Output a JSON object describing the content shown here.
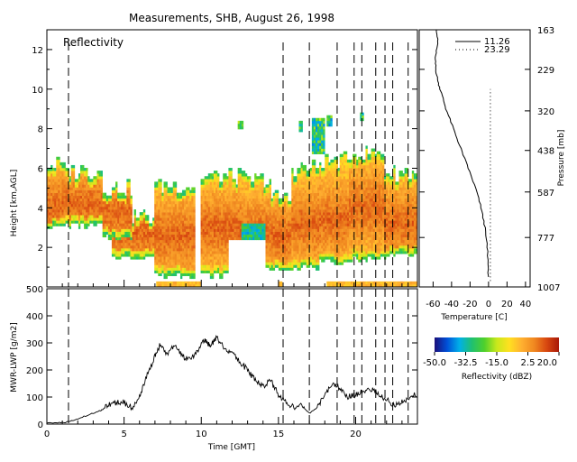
{
  "title": "Measurements, SHB, August 26, 1998",
  "colors": {
    "background": "#ffffff",
    "axis": "#000000",
    "marker": "#000000"
  },
  "chart_data": [
    {
      "id": "reflectivity",
      "type": "heatmap",
      "panel_label": "Reflectivity",
      "xlabel": "",
      "ylabel": "Height [km,AGL]",
      "xlim": [
        0,
        24
      ],
      "ylim": [
        0,
        13
      ],
      "yticks": [
        2,
        4,
        6,
        8,
        10,
        12
      ],
      "markers_x": [
        1.4,
        15.3,
        17.0,
        18.8,
        19.9,
        20.4,
        21.3,
        21.9,
        22.4,
        23.4
      ],
      "cloud_regions": [
        {
          "t0": 0.0,
          "t1": 1.0,
          "base": 3.0,
          "top": 6.2,
          "core": 4.0
        },
        {
          "t0": 0.7,
          "t1": 3.6,
          "base": 3.1,
          "top": 5.9,
          "core": 4.2
        },
        {
          "t0": 3.6,
          "t1": 5.5,
          "base": 2.5,
          "top": 5.0,
          "core": 3.8
        },
        {
          "t0": 4.2,
          "t1": 7.0,
          "base": 1.5,
          "top": 3.6,
          "core": 2.8
        },
        {
          "t0": 7.0,
          "t1": 9.6,
          "base": 0.6,
          "top": 5.1,
          "core": 2.6
        },
        {
          "t0": 10.0,
          "t1": 12.6,
          "base": 0.6,
          "top": 5.6,
          "core": 3.0
        },
        {
          "t0": 12.6,
          "t1": 14.5,
          "base": 0.8,
          "top": 5.4,
          "core": 2.8
        },
        {
          "t0": 14.5,
          "t1": 15.8,
          "base": 0.9,
          "top": 4.5,
          "core": 2.6
        },
        {
          "t0": 15.8,
          "t1": 17.6,
          "base": 1.0,
          "top": 6.0,
          "core": 3.2
        },
        {
          "t0": 17.6,
          "t1": 19.6,
          "base": 1.2,
          "top": 6.4,
          "core": 3.4
        },
        {
          "t0": 19.6,
          "t1": 21.8,
          "base": 1.4,
          "top": 6.8,
          "core": 4.0
        },
        {
          "t0": 21.8,
          "t1": 24.0,
          "base": 1.6,
          "top": 5.8,
          "core": 3.2
        }
      ],
      "dry_pockets": [
        {
          "t0": 11.8,
          "t1": 14.2,
          "z0": 0.0,
          "z1": 2.4
        },
        {
          "t0": 15.2,
          "t1": 16.2,
          "z0": 0.0,
          "z1": 0.9
        }
      ],
      "aloft_echoes": [
        {
          "t": 12.5,
          "z": 8.2,
          "w": 0.4,
          "h": 0.5
        },
        {
          "t": 16.4,
          "z": 8.1,
          "w": 0.2,
          "h": 0.5
        },
        {
          "t": 17.6,
          "z": 7.6,
          "w": 0.9,
          "h": 1.8
        },
        {
          "t": 18.3,
          "z": 8.4,
          "w": 0.3,
          "h": 0.5
        },
        {
          "t": 20.4,
          "z": 8.6,
          "w": 0.3,
          "h": 0.5
        }
      ],
      "surface_echoes": [
        {
          "t0": 7.1,
          "t1": 10.0,
          "z0": 0.0,
          "z1": 0.35
        },
        {
          "t0": 15.0,
          "t1": 16.0,
          "z0": 0.0,
          "z1": 0.3
        },
        {
          "t0": 18.1,
          "t1": 24.0,
          "z0": 0.0,
          "z1": 0.35
        }
      ],
      "data_gap_t": 9.75
    },
    {
      "id": "temperature",
      "type": "line",
      "xlabel": "Temperature [C]",
      "ylabel": "Pressure [mb]",
      "xlim": [
        -75,
        45
      ],
      "xticks": [
        -60,
        -40,
        -20,
        0,
        20,
        40
      ],
      "pressure_labels": [
        "163",
        "229",
        "320",
        "438",
        "587",
        "777",
        "1007"
      ],
      "pressure_tick_heights_km": [
        13.0,
        11.0,
        8.9,
        6.9,
        4.8,
        2.5,
        0.0
      ],
      "height_range_km": [
        0,
        13
      ],
      "series": [
        {
          "name": "11.26",
          "dash": "solid",
          "x": [
            -56,
            -55,
            -58,
            -57,
            -55,
            -51,
            -46,
            -38,
            -30,
            -22,
            -14,
            -8,
            -4,
            -1,
            0
          ],
          "y": [
            13.0,
            12.3,
            11.6,
            11.0,
            10.4,
            9.8,
            9.0,
            8.0,
            7.0,
            6.0,
            5.0,
            4.0,
            3.0,
            1.8,
            0.5
          ]
        },
        {
          "name": "23.29",
          "dash": "dotted",
          "x": [
            2,
            2
          ],
          "y": [
            0.3,
            10.0
          ]
        }
      ]
    },
    {
      "id": "lwp",
      "type": "line",
      "xlabel": "Time [GMT]",
      "ylabel": "MWR-LWP [g/m2]",
      "xlim": [
        0,
        24
      ],
      "ylim": [
        0,
        500
      ],
      "xticks": [
        0,
        5,
        10,
        15,
        20
      ],
      "yticks": [
        0,
        100,
        200,
        300,
        400,
        500
      ],
      "markers_x": [
        1.4,
        15.3,
        17.0,
        18.8,
        19.9,
        20.4,
        21.3,
        21.9,
        22.4,
        23.4
      ],
      "series": [
        {
          "name": "",
          "x": [
            0.0,
            1.0,
            1.5,
            2.5,
            3.5,
            4.0,
            4.5,
            5.0,
            5.5,
            6.0,
            6.5,
            7.0,
            7.3,
            7.8,
            8.3,
            8.8,
            9.3,
            9.8,
            10.2,
            10.6,
            11.0,
            11.5,
            12.0,
            12.5,
            13.0,
            13.5,
            14.0,
            14.5,
            15.0,
            15.5,
            16.0,
            16.5,
            17.0,
            17.5,
            18.0,
            18.5,
            19.0,
            19.5,
            20.0,
            20.5,
            21.0,
            21.5,
            22.0,
            22.5,
            23.0,
            23.5,
            24.0
          ],
          "y": [
            5,
            5,
            10,
            30,
            50,
            70,
            80,
            80,
            60,
            100,
            180,
            250,
            290,
            260,
            290,
            250,
            240,
            270,
            310,
            290,
            320,
            280,
            260,
            230,
            200,
            160,
            140,
            160,
            110,
            80,
            60,
            70,
            40,
            60,
            110,
            150,
            130,
            100,
            110,
            120,
            130,
            110,
            90,
            70,
            80,
            100,
            110
          ]
        }
      ]
    }
  ],
  "colorbar": {
    "label": "Reflectivity (dBZ)",
    "min": -50,
    "max": 20,
    "tick_labels": [
      "-50.0",
      "-32.5",
      "-15.0",
      "2.5",
      "20.0"
    ],
    "stops": [
      "#1a0f7a",
      "#0050d8",
      "#00b0e8",
      "#20c070",
      "#4ed02c",
      "#c8e81c",
      "#ffe020",
      "#ffb030",
      "#f08820",
      "#d84810",
      "#a81808"
    ]
  }
}
